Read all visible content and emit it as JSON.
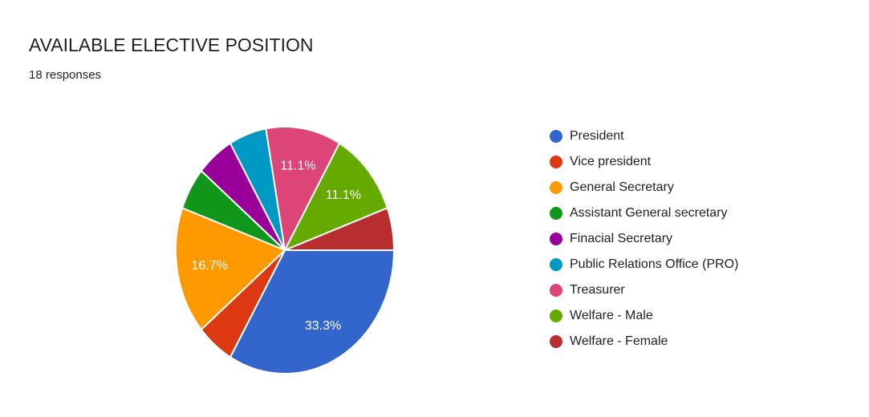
{
  "header": {
    "title": "AVAILABLE ELECTIVE POSITION",
    "subtitle": "18 responses"
  },
  "chart_data": {
    "type": "pie",
    "title": "AVAILABLE ELECTIVE POSITION",
    "subtitle": "18 responses",
    "total_responses": 18,
    "legend_position": "right",
    "start_angle_deg": 90,
    "label_color": "#ffffff",
    "slice_gap_color": "#ffffff",
    "slices": [
      {
        "label": "President",
        "value": 6,
        "percent": 33.3,
        "percent_label": "33.3%",
        "color": "#3366CC",
        "show_label": true
      },
      {
        "label": "Vice president",
        "value": 1,
        "percent": 5.6,
        "percent_label": "",
        "color": "#DC3912",
        "show_label": false
      },
      {
        "label": "General Secretary",
        "value": 3,
        "percent": 16.7,
        "percent_label": "16.7%",
        "color": "#FF9900",
        "show_label": true
      },
      {
        "label": "Assistant General secretary",
        "value": 1,
        "percent": 5.6,
        "percent_label": "",
        "color": "#109618",
        "show_label": false
      },
      {
        "label": "Finacial Secretary",
        "value": 1,
        "percent": 5.6,
        "percent_label": "",
        "color": "#990099",
        "show_label": false
      },
      {
        "label": "Public Relations Office (PRO)",
        "value": 1,
        "percent": 5.6,
        "percent_label": "",
        "color": "#0099C6",
        "show_label": false
      },
      {
        "label": "Treasurer",
        "value": 2,
        "percent": 11.1,
        "percent_label": "11.1%",
        "color": "#DD4477",
        "show_label": true
      },
      {
        "label": "Welfare - Male",
        "value": 2,
        "percent": 11.1,
        "percent_label": "11.1%",
        "color": "#66AA00",
        "show_label": true
      },
      {
        "label": "Welfare - Female",
        "value": 1,
        "percent": 5.6,
        "percent_label": "",
        "color": "#B82E2E",
        "show_label": false
      }
    ]
  }
}
